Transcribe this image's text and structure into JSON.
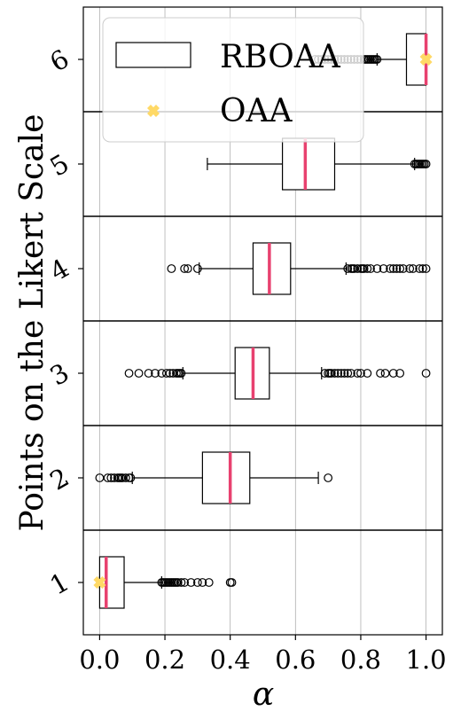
{
  "chart_data": {
    "type": "box",
    "orientation": "horizontal",
    "xlabel": "α",
    "ylabel": "Points on the Likert Scale",
    "xlim": [
      -0.05,
      1.05
    ],
    "xticks": [
      "0.0",
      "0.2",
      "0.4",
      "0.6",
      "0.8",
      "1.0"
    ],
    "xtick_values": [
      0.0,
      0.2,
      0.4,
      0.6,
      0.8,
      1.0
    ],
    "categories": [
      "1",
      "2",
      "3",
      "4",
      "5",
      "6"
    ],
    "grid": "x",
    "legend": {
      "position": "top-left",
      "entries": [
        "RBOAA",
        "OAA"
      ]
    },
    "colors": {
      "median": "#e8416f",
      "oaa_marker": "#ffd966",
      "box": "#000000",
      "grid": "#b0b0b0"
    },
    "series": [
      {
        "name": "RBOAA",
        "boxes": [
          {
            "category": "1",
            "whisker_low": 0.0,
            "q1": 0.0,
            "median": 0.02,
            "q3": 0.075,
            "whisker_high": 0.19,
            "outliers": [
              0.19,
              0.195,
              0.2,
              0.205,
              0.21,
              0.215,
              0.22,
              0.225,
              0.23,
              0.235,
              0.24,
              0.25,
              0.26,
              0.28,
              0.3,
              0.315,
              0.335,
              0.4,
              0.405
            ]
          },
          {
            "category": "2",
            "whisker_low": 0.1,
            "q1": 0.315,
            "median": 0.4,
            "q3": 0.46,
            "whisker_high": 0.67,
            "outliers": [
              0.0,
              0.025,
              0.035,
              0.045,
              0.055,
              0.06,
              0.065,
              0.07,
              0.08,
              0.09,
              0.095,
              0.7
            ]
          },
          {
            "category": "3",
            "whisker_low": 0.255,
            "q1": 0.415,
            "median": 0.47,
            "q3": 0.52,
            "whisker_high": 0.68,
            "outliers": [
              0.09,
              0.12,
              0.15,
              0.17,
              0.19,
              0.205,
              0.215,
              0.225,
              0.235,
              0.24,
              0.245,
              0.25,
              0.69,
              0.7,
              0.705,
              0.71,
              0.72,
              0.73,
              0.74,
              0.75,
              0.76,
              0.77,
              0.79,
              0.8,
              0.82,
              0.86,
              0.875,
              0.9,
              0.92,
              1.0
            ]
          },
          {
            "category": "4",
            "whisker_low": 0.305,
            "q1": 0.47,
            "median": 0.52,
            "q3": 0.585,
            "whisker_high": 0.755,
            "outliers": [
              0.22,
              0.26,
              0.27,
              0.3,
              0.76,
              0.77,
              0.775,
              0.78,
              0.79,
              0.8,
              0.805,
              0.81,
              0.82,
              0.83,
              0.85,
              0.87,
              0.89,
              0.9,
              0.91,
              0.92,
              0.93,
              0.95,
              0.96,
              0.98,
              0.99,
              1.0
            ]
          },
          {
            "category": "5",
            "whisker_low": 0.33,
            "q1": 0.56,
            "median": 0.63,
            "q3": 0.72,
            "whisker_high": 0.965,
            "outliers": [
              0.965,
              0.97,
              0.975,
              0.98,
              0.985,
              0.99,
              0.995,
              1.0
            ]
          },
          {
            "category": "6",
            "whisker_low": 0.85,
            "q1": 0.94,
            "median": 1.0,
            "q3": 1.0,
            "whisker_high": 1.0,
            "outliers": [
              0.66,
              0.67,
              0.68,
              0.69,
              0.7,
              0.71,
              0.72,
              0.73,
              0.74,
              0.75,
              0.76,
              0.77,
              0.78,
              0.79,
              0.8,
              0.81,
              0.815,
              0.82,
              0.825,
              0.83,
              0.835,
              0.84,
              0.845,
              0.85
            ]
          }
        ]
      },
      {
        "name": "OAA",
        "points": [
          {
            "category": "1",
            "x": 0.0
          },
          {
            "category": "6",
            "x": 1.0
          }
        ]
      }
    ]
  }
}
